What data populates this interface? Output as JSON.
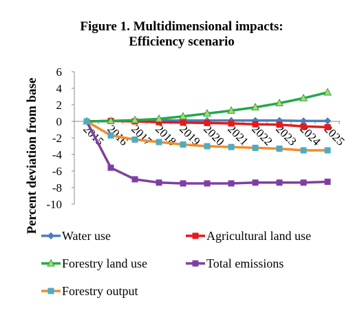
{
  "chart_data": {
    "type": "line",
    "title_lines": [
      "Figure 1. Multidimensional impacts:",
      "Efficiency scenario"
    ],
    "ylabel": "Percent deviation from base",
    "xlabel": "",
    "ylim": [
      -10,
      6
    ],
    "yticks": [
      6,
      4,
      2,
      0,
      -2,
      -4,
      -6,
      -8,
      -10
    ],
    "categories": [
      "2015",
      "2016",
      "2017",
      "2018",
      "2019",
      "2020",
      "2021",
      "2022",
      "2023",
      "2024",
      "2025"
    ],
    "legend_position": "bottom",
    "series": [
      {
        "name": "Water use",
        "color": "#4a7ebb",
        "marker": "diamond",
        "values": [
          0,
          0.05,
          0.1,
          0.1,
          0.1,
          0.1,
          0.1,
          0.1,
          0.1,
          0.05,
          0.05
        ]
      },
      {
        "name": "Agricultural land use",
        "color": "#e41a1c",
        "marker": "square",
        "values": [
          0,
          0.05,
          0,
          -0.1,
          -0.15,
          -0.2,
          -0.25,
          -0.35,
          -0.4,
          -0.6,
          -0.7
        ]
      },
      {
        "name": "Forestry land use",
        "color": "#23a84a",
        "marker": "triangle",
        "values": [
          0,
          0.05,
          0.15,
          0.3,
          0.6,
          0.95,
          1.3,
          1.7,
          2.2,
          2.8,
          3.5
        ]
      },
      {
        "name": "Total emissions",
        "color": "#7f3fa0",
        "marker": "square",
        "values": [
          0,
          -5.6,
          -7,
          -7.4,
          -7.5,
          -7.5,
          -7.5,
          -7.4,
          -7.4,
          -7.4,
          -7.3
        ]
      },
      {
        "name": "Forestry output",
        "color": "#f28c28",
        "marker": "square",
        "marker_color": "#4bacc6",
        "values": [
          0,
          -1.7,
          -2.2,
          -2.5,
          -2.8,
          -3.0,
          -3.1,
          -3.2,
          -3.3,
          -3.5,
          -3.5
        ]
      }
    ]
  }
}
